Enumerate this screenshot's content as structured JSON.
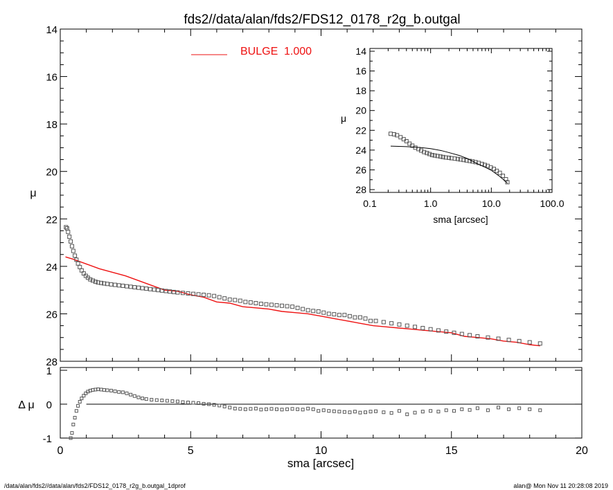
{
  "title": "fds2//data/alan/fds2/FDS12_0178_r2g_b.outgal",
  "footer": {
    "left": "/data/alan/fds2//data/alan/fds2/FDS12_0178_r2g_b.outgal_1dprof",
    "right": "alan@  Mon Nov 11 20:28:08 2019"
  },
  "colors": {
    "model": "#ee1111",
    "data": "#555555",
    "axes": "#000000"
  },
  "chart_data": [
    {
      "name": "main",
      "type": "scatter",
      "xlabel": "sma [arcsec]",
      "ylabel": "μ",
      "xlim": [
        0,
        20
      ],
      "ylim": [
        28,
        14
      ],
      "xticks": [
        0,
        5,
        10,
        15,
        20
      ],
      "yticks": [
        14,
        16,
        18,
        20,
        22,
        24,
        26,
        28
      ],
      "legend": {
        "label": "BULGE",
        "value": "1.000",
        "placement": "top-center"
      },
      "series": [
        {
          "name": "data",
          "style": "open-squares",
          "x": [
            0.22,
            0.26,
            0.3,
            0.35,
            0.4,
            0.45,
            0.5,
            0.56,
            0.62,
            0.68,
            0.75,
            0.82,
            0.9,
            0.98,
            1.06,
            1.15,
            1.25,
            1.35,
            1.45,
            1.57,
            1.68,
            1.8,
            1.95,
            2.1,
            2.25,
            2.4,
            2.55,
            2.7,
            2.85,
            3.0,
            3.15,
            3.3,
            3.45,
            3.6,
            3.75,
            3.9,
            4.05,
            4.2,
            4.35,
            4.5,
            4.7,
            4.9,
            5.1,
            5.3,
            5.5,
            5.7,
            5.9,
            6.1,
            6.3,
            6.5,
            6.7,
            6.9,
            7.1,
            7.3,
            7.5,
            7.7,
            7.9,
            8.1,
            8.3,
            8.5,
            8.7,
            8.9,
            9.1,
            9.3,
            9.5,
            9.7,
            9.9,
            10.1,
            10.3,
            10.5,
            10.7,
            10.9,
            11.1,
            11.3,
            11.5,
            11.7,
            11.9,
            12.1,
            12.4,
            12.7,
            13.0,
            13.3,
            13.6,
            13.9,
            14.2,
            14.5,
            14.8,
            15.1,
            15.4,
            15.7,
            16.0,
            16.4,
            16.8,
            17.2,
            17.6,
            18.0,
            18.4
          ],
          "y": [
            22.35,
            22.4,
            22.55,
            22.75,
            22.95,
            23.15,
            23.35,
            23.55,
            23.72,
            23.88,
            24.03,
            24.17,
            24.3,
            24.4,
            24.48,
            24.55,
            24.6,
            24.65,
            24.68,
            24.7,
            24.72,
            24.74,
            24.76,
            24.78,
            24.8,
            24.82,
            24.84,
            24.86,
            24.88,
            24.9,
            24.92,
            24.94,
            24.96,
            24.98,
            25.0,
            25.02,
            25.04,
            25.06,
            25.08,
            25.1,
            25.12,
            25.14,
            25.16,
            25.18,
            25.2,
            25.22,
            25.25,
            25.3,
            25.35,
            25.4,
            25.42,
            25.45,
            25.5,
            25.52,
            25.55,
            25.58,
            25.6,
            25.62,
            25.64,
            25.66,
            25.68,
            25.7,
            25.75,
            25.8,
            25.85,
            25.88,
            25.9,
            25.95,
            26.0,
            26.02,
            26.05,
            26.05,
            26.1,
            26.15,
            26.15,
            26.2,
            26.3,
            26.3,
            26.35,
            26.4,
            26.45,
            26.5,
            26.55,
            26.6,
            26.65,
            26.7,
            26.75,
            26.8,
            26.85,
            26.9,
            26.95,
            27.0,
            27.05,
            27.1,
            27.15,
            27.2,
            27.25
          ]
        },
        {
          "name": "BULGE",
          "style": "line",
          "x": [
            0.2,
            0.5,
            1.0,
            1.5,
            2.0,
            2.5,
            3.0,
            3.5,
            4.0,
            4.5,
            5.0,
            5.5,
            6.0,
            6.5,
            7.0,
            7.5,
            8.0,
            8.5,
            9.0,
            9.5,
            10.0,
            10.5,
            11.0,
            11.5,
            12.0,
            12.5,
            13.0,
            13.5,
            14.0,
            14.5,
            15.0,
            15.5,
            16.0,
            16.5,
            17.0,
            17.5,
            18.0,
            18.4
          ],
          "y": [
            23.6,
            23.7,
            23.9,
            24.1,
            24.25,
            24.4,
            24.6,
            24.8,
            25.0,
            25.05,
            25.2,
            25.3,
            25.5,
            25.55,
            25.7,
            25.75,
            25.8,
            25.9,
            25.95,
            26.0,
            26.1,
            26.2,
            26.3,
            26.4,
            26.5,
            26.55,
            26.6,
            26.65,
            26.7,
            26.75,
            26.8,
            26.95,
            27.0,
            27.05,
            27.15,
            27.2,
            27.3,
            27.35
          ]
        }
      ]
    },
    {
      "name": "residual",
      "type": "scatter",
      "xlabel": "sma [arcsec]",
      "ylabel": "Δ μ",
      "xlim": [
        0,
        20
      ],
      "ylim": [
        -1,
        1
      ],
      "xticks": [
        0,
        5,
        10,
        15,
        20
      ],
      "xticklabels": [
        "0",
        "5",
        "10",
        "15",
        "20"
      ],
      "yticks": [
        -1,
        0,
        1
      ],
      "yticklabels": [
        "-1",
        "0",
        "1"
      ],
      "zero_line": {
        "x": [
          1.0,
          20
        ],
        "y": 0
      },
      "series": [
        {
          "name": "residual",
          "style": "open-squares",
          "x": [
            0.4,
            0.45,
            0.5,
            0.56,
            0.62,
            0.68,
            0.75,
            0.82,
            0.9,
            0.98,
            1.06,
            1.15,
            1.25,
            1.35,
            1.45,
            1.57,
            1.68,
            1.8,
            1.95,
            2.1,
            2.25,
            2.4,
            2.55,
            2.7,
            2.85,
            3.0,
            3.15,
            3.3,
            3.5,
            3.7,
            3.9,
            4.1,
            4.3,
            4.5,
            4.7,
            4.9,
            5.1,
            5.3,
            5.5,
            5.7,
            5.9,
            6.1,
            6.3,
            6.5,
            6.7,
            6.9,
            7.1,
            7.3,
            7.5,
            7.7,
            7.9,
            8.1,
            8.3,
            8.5,
            8.7,
            8.9,
            9.1,
            9.3,
            9.5,
            9.7,
            9.9,
            10.1,
            10.3,
            10.5,
            10.7,
            10.9,
            11.1,
            11.3,
            11.5,
            11.7,
            11.9,
            12.1,
            12.4,
            12.7,
            13.0,
            13.3,
            13.6,
            13.9,
            14.2,
            14.5,
            14.8,
            15.1,
            15.4,
            15.7,
            16.0,
            16.4,
            16.8,
            17.2,
            17.6,
            18.0,
            18.4
          ],
          "y": [
            -1.0,
            -0.85,
            -0.6,
            -0.4,
            -0.2,
            -0.05,
            0.07,
            0.17,
            0.25,
            0.32,
            0.37,
            0.4,
            0.42,
            0.43,
            0.44,
            0.43,
            0.42,
            0.41,
            0.4,
            0.38,
            0.36,
            0.35,
            0.32,
            0.28,
            0.24,
            0.2,
            0.17,
            0.15,
            0.13,
            0.12,
            0.11,
            0.1,
            0.09,
            0.08,
            0.06,
            0.05,
            0.04,
            0.03,
            0.01,
            0.0,
            -0.02,
            -0.04,
            -0.07,
            -0.1,
            -0.13,
            -0.14,
            -0.15,
            -0.14,
            -0.13,
            -0.16,
            -0.15,
            -0.14,
            -0.15,
            -0.16,
            -0.15,
            -0.14,
            -0.15,
            -0.16,
            -0.13,
            -0.15,
            -0.2,
            -0.18,
            -0.2,
            -0.21,
            -0.22,
            -0.23,
            -0.24,
            -0.22,
            -0.25,
            -0.24,
            -0.22,
            -0.21,
            -0.24,
            -0.26,
            -0.2,
            -0.3,
            -0.25,
            -0.22,
            -0.2,
            -0.22,
            -0.18,
            -0.2,
            -0.15,
            -0.17,
            -0.12,
            -0.18,
            -0.1,
            -0.15,
            -0.12,
            -0.15,
            -0.18
          ]
        }
      ]
    },
    {
      "name": "inset",
      "type": "scatter",
      "xscale": "log",
      "xlabel": "sma [arcsec]",
      "ylabel": "μ",
      "xlim": [
        0.1,
        100
      ],
      "ylim": [
        28,
        14
      ],
      "xticks": [
        0.1,
        1,
        10,
        100
      ],
      "xticklabels": [
        "0.1",
        "1.0",
        "10.0",
        "100.0"
      ],
      "yticks": [
        14,
        16,
        18,
        20,
        22,
        24,
        26,
        28
      ],
      "series": [
        {
          "name": "data",
          "style": "open-squares",
          "x": [
            0.22,
            0.25,
            0.28,
            0.32,
            0.36,
            0.4,
            0.45,
            0.5,
            0.56,
            0.63,
            0.7,
            0.78,
            0.87,
            0.96,
            1.06,
            1.17,
            1.3,
            1.45,
            1.6,
            1.78,
            2.0,
            2.2,
            2.5,
            2.8,
            3.1,
            3.5,
            3.9,
            4.4,
            4.9,
            5.5,
            6.2,
            7.0,
            7.8,
            8.7,
            9.8,
            11.0,
            12.3,
            13.8,
            15.5,
            17.4,
            18.4
          ],
          "y": [
            22.35,
            22.4,
            22.5,
            22.7,
            22.9,
            23.1,
            23.35,
            23.55,
            23.75,
            23.9,
            24.05,
            24.2,
            24.3,
            24.4,
            24.5,
            24.55,
            24.6,
            24.65,
            24.7,
            24.75,
            24.78,
            24.82,
            24.86,
            24.9,
            24.95,
            25.0,
            25.05,
            25.1,
            25.15,
            25.22,
            25.3,
            25.4,
            25.5,
            25.6,
            25.75,
            25.9,
            26.1,
            26.3,
            26.6,
            26.95,
            27.25
          ]
        },
        {
          "name": "BULGE",
          "style": "line",
          "x": [
            0.22,
            0.4,
            0.7,
            1.0,
            1.5,
            2.0,
            3.0,
            4.0,
            5.0,
            6.0,
            8.0,
            10.0,
            13.0,
            16.0,
            18.4
          ],
          "y": [
            23.6,
            23.65,
            23.75,
            23.85,
            24.05,
            24.25,
            24.55,
            24.85,
            25.15,
            25.4,
            25.75,
            26.05,
            26.55,
            27.0,
            27.35
          ]
        }
      ]
    }
  ]
}
